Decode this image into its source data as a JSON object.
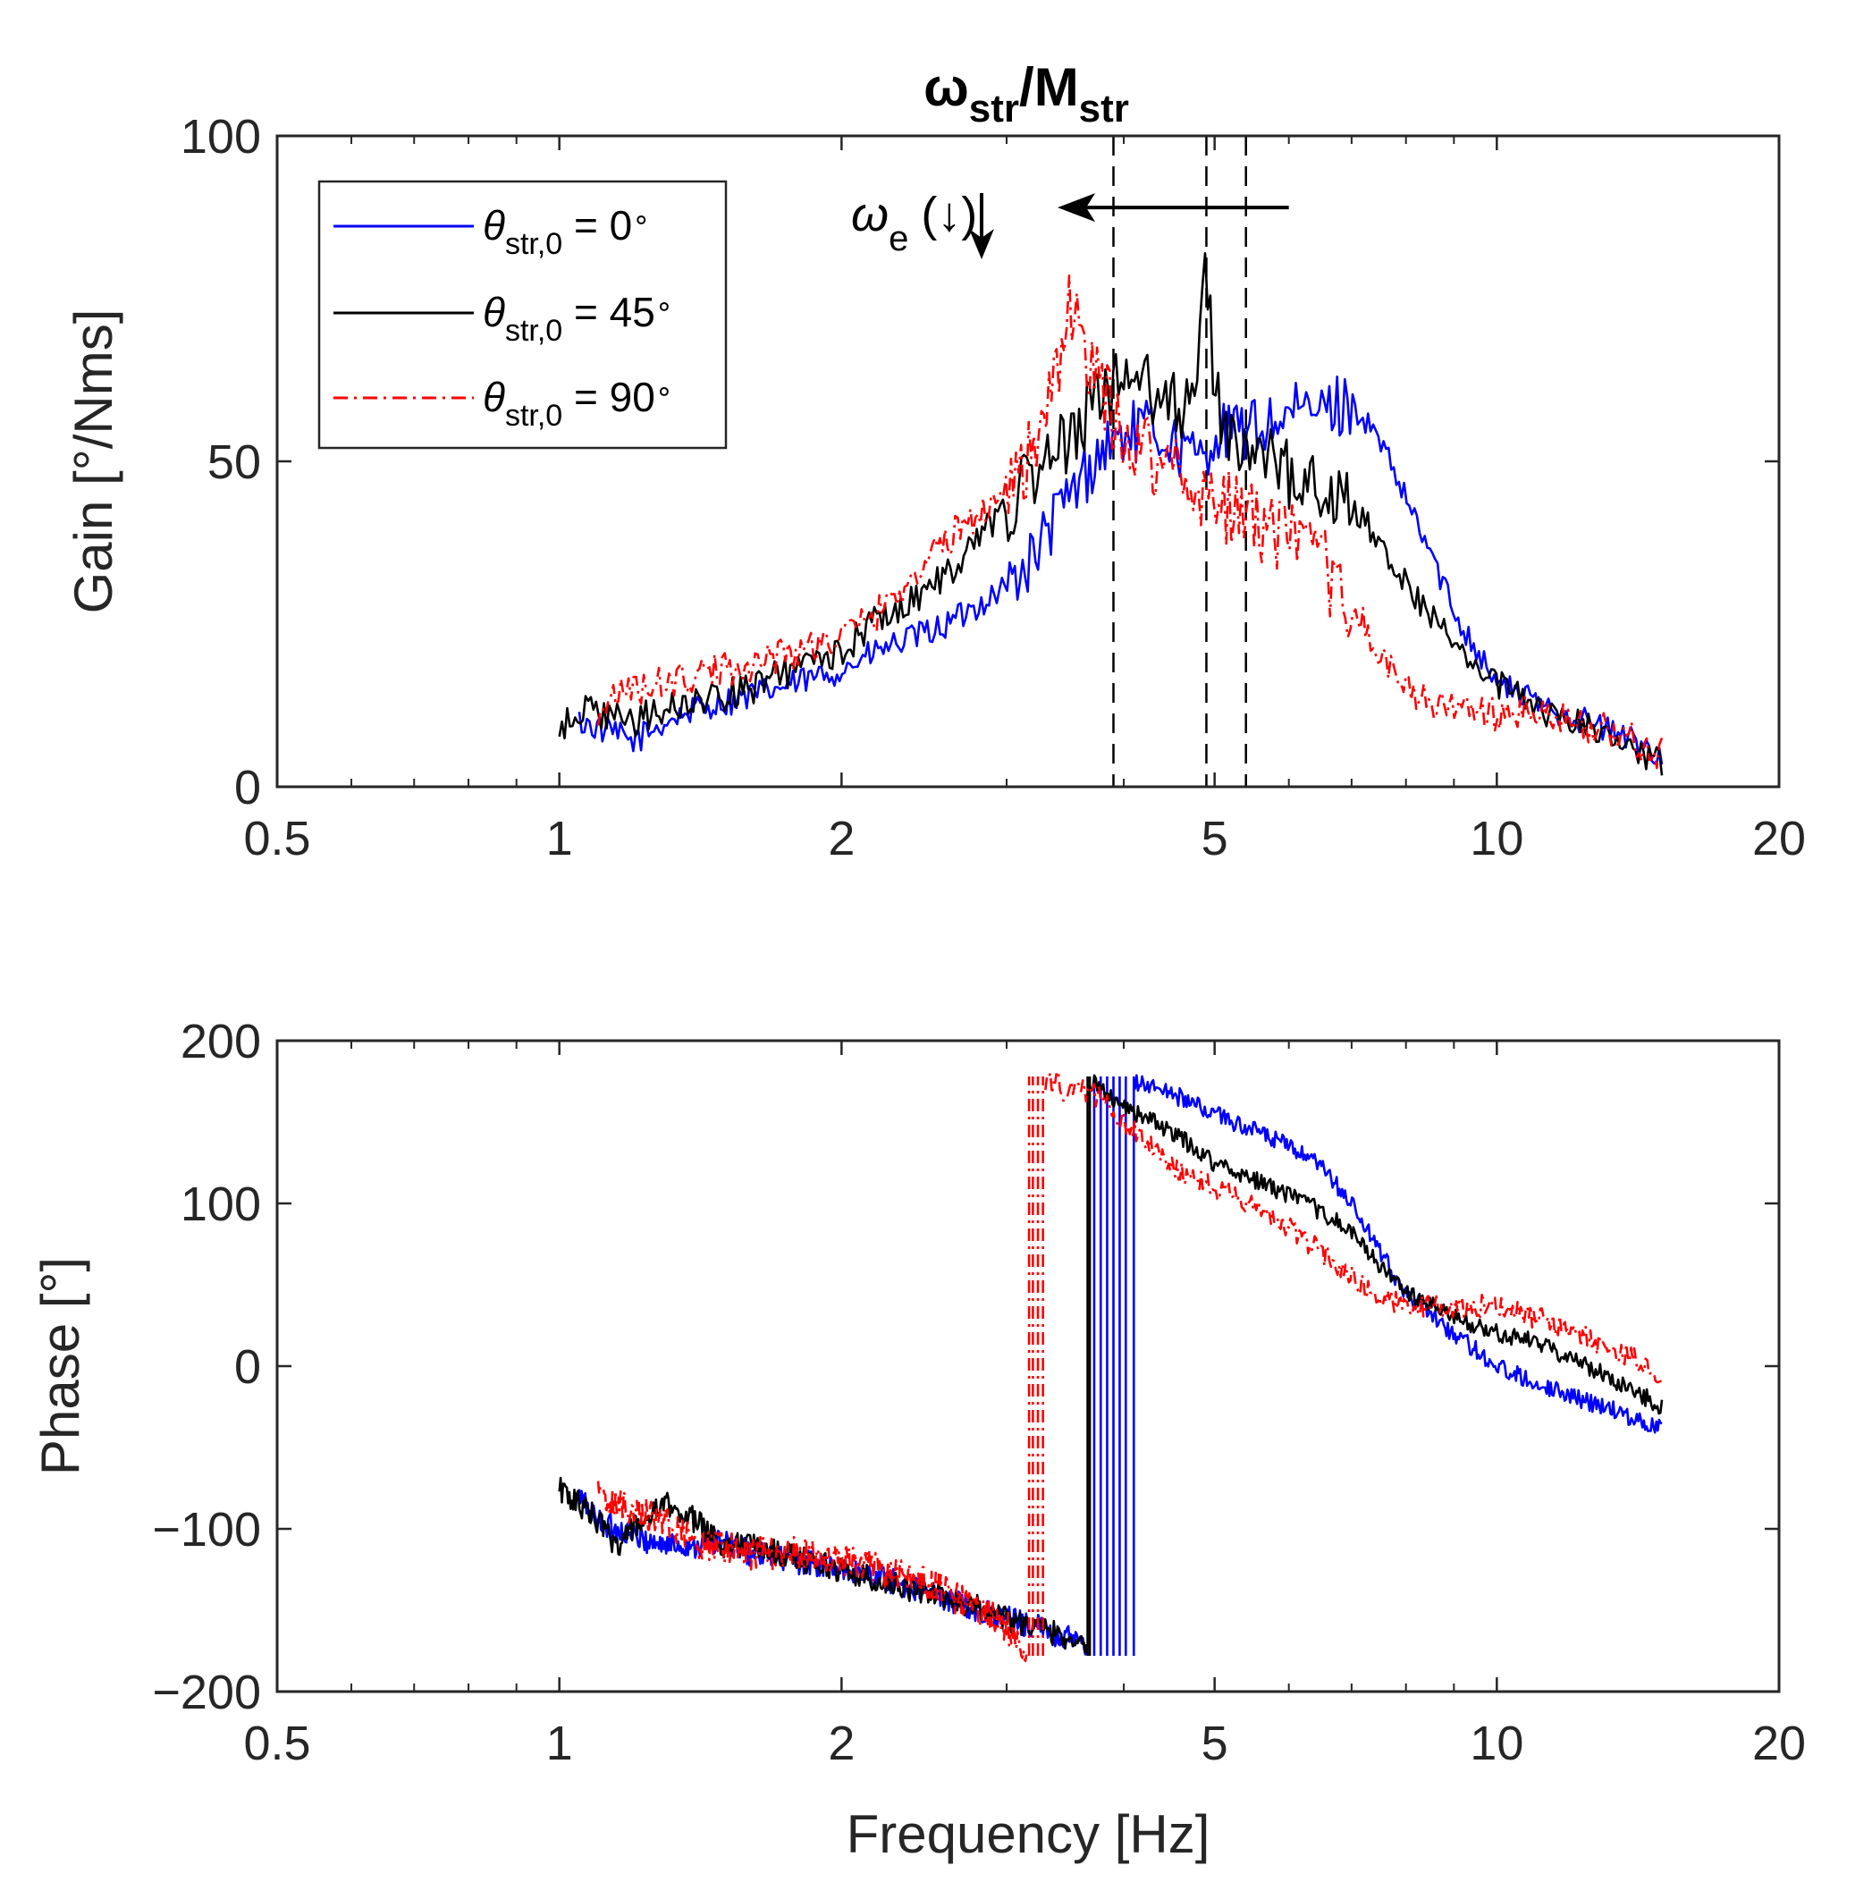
{
  "chart_data": [
    {
      "panel": "gain",
      "type": "line",
      "title": "ω_str/M_str",
      "title_parts": {
        "base1": "ω",
        "sub1": "str",
        "sep": "/",
        "base2": "M",
        "sub2": "str"
      },
      "xlabel": "",
      "ylabel": "Gain [°/Nms]",
      "xscale": "log",
      "xlim": [
        0.5,
        20
      ],
      "ylim": [
        0,
        100
      ],
      "xticks": [
        0.5,
        1,
        2,
        5,
        10,
        20
      ],
      "xtick_labels": [
        "0.5",
        "1",
        "2",
        "5",
        "10",
        "20"
      ],
      "yticks": [
        0,
        50,
        100
      ],
      "ytick_labels": [
        "0",
        "50",
        "100"
      ],
      "vlines": [
        3.9,
        4.9,
        5.4
      ],
      "annotation": {
        "symbol": "ω",
        "subscript": "e",
        "suffix": "(↓)",
        "arrow_from_x": 6.0,
        "arrow_to_x": 3.4,
        "arrow_y": 89
      },
      "legend": {
        "position": "top-left",
        "entries": [
          {
            "sym": "θ",
            "sub": "str,0",
            "text": " = 0",
            "deg": "∘",
            "color": "#0000ff",
            "style": "solid"
          },
          {
            "sym": "θ",
            "sub": "str,0",
            "text": " = 45",
            "deg": "∘",
            "color": "#000000",
            "style": "solid"
          },
          {
            "sym": "θ",
            "sub": "str,0",
            "text": " = 90",
            "deg": "∘",
            "color": "#ff0000",
            "style": "dashdot"
          }
        ]
      },
      "series": [
        {
          "name": "θ_str,0 = 0°",
          "color": "#0000ff",
          "style": "solid",
          "x": [
            1.05,
            1.1,
            1.2,
            1.3,
            1.4,
            1.5,
            1.6,
            1.7,
            1.8,
            1.9,
            2.0,
            2.2,
            2.4,
            2.6,
            2.8,
            3.0,
            3.2,
            3.4,
            3.6,
            3.8,
            4.0,
            4.2,
            4.4,
            4.6,
            4.8,
            5.0,
            5.5,
            6.0,
            6.5,
            7.0,
            7.5,
            8.0,
            8.5,
            9.0,
            10.0,
            11.0,
            12.0,
            13.0,
            14.0,
            15.0
          ],
          "y": [
            10,
            9,
            7,
            10,
            12,
            13,
            14,
            15,
            16,
            17,
            18,
            21,
            23,
            25,
            28,
            31,
            35,
            42,
            47,
            52,
            54,
            55,
            54,
            52,
            50,
            54,
            55,
            57,
            58,
            59,
            53,
            44,
            36,
            27,
            16,
            13,
            11,
            9,
            7,
            5
          ],
          "noise_amp": 2.2
        },
        {
          "name": "θ_str,0 = 45°",
          "color": "#000000",
          "style": "solid",
          "x": [
            1.0,
            1.05,
            1.1,
            1.2,
            1.3,
            1.4,
            1.5,
            1.6,
            1.7,
            1.8,
            2.0,
            2.2,
            2.4,
            2.6,
            2.8,
            3.0,
            3.2,
            3.4,
            3.6,
            3.8,
            4.0,
            4.2,
            4.4,
            4.6,
            4.8,
            4.9,
            5.0,
            5.3,
            5.7,
            6.0,
            6.5,
            7.0,
            7.5,
            8.0,
            9.0,
            10.0,
            11.0,
            12.0,
            13.0,
            14.0,
            15.0
          ],
          "y": [
            8,
            12,
            11,
            10,
            12,
            13,
            14,
            15,
            17,
            18,
            21,
            26,
            29,
            33,
            38,
            43,
            47,
            51,
            56,
            60,
            62,
            62,
            60,
            58,
            65,
            80,
            60,
            52,
            50,
            48,
            46,
            43,
            38,
            31,
            22,
            16,
            12,
            10,
            8,
            6,
            4
          ],
          "noise_amp": 2.5
        },
        {
          "name": "θ_str,0 = 90°",
          "color": "#ff0000",
          "style": "dashdot",
          "x": [
            1.1,
            1.15,
            1.2,
            1.3,
            1.4,
            1.5,
            1.6,
            1.7,
            1.8,
            1.9,
            2.0,
            2.2,
            2.4,
            2.6,
            2.8,
            3.0,
            3.2,
            3.4,
            3.5,
            3.6,
            3.8,
            4.0,
            4.2,
            4.4,
            4.6,
            4.8,
            5.0,
            5.5,
            6.0,
            6.5,
            7.0,
            7.5,
            8.0,
            8.5,
            9.0,
            10.0,
            11.0,
            12.0,
            13.0,
            14.0,
            15.0
          ],
          "y": [
            12,
            14,
            15,
            16,
            17,
            18,
            19,
            20,
            21,
            22,
            23,
            27,
            33,
            38,
            42,
            46,
            52,
            62,
            75,
            68,
            60,
            54,
            52,
            50,
            48,
            46,
            44,
            41,
            38,
            34,
            28,
            20,
            15,
            13,
            12,
            11,
            11,
            10,
            9,
            7,
            5
          ],
          "noise_amp": 2.8
        }
      ]
    },
    {
      "panel": "phase",
      "type": "line",
      "title": "",
      "xlabel": "Frequency [Hz]",
      "ylabel": "Phase [°]",
      "xscale": "log",
      "xlim": [
        0.5,
        20
      ],
      "ylim": [
        -200,
        200
      ],
      "xticks": [
        0.5,
        1,
        2,
        5,
        10,
        20
      ],
      "xtick_labels": [
        "0.5",
        "1",
        "2",
        "5",
        "10",
        "20"
      ],
      "yticks": [
        -200,
        -100,
        0,
        100,
        200
      ],
      "ytick_labels": [
        "−200",
        "−100",
        "0",
        "100",
        "200"
      ],
      "series": [
        {
          "name": "θ_str,0 = 0°",
          "color": "#0000ff",
          "style": "solid",
          "x": [
            1.05,
            1.1,
            1.2,
            1.3,
            1.4,
            1.5,
            1.6,
            1.8,
            2.0,
            2.2,
            2.5,
            2.8,
            3.0,
            3.3,
            3.6,
            3.65
          ],
          "y": [
            -80,
            -95,
            -105,
            -110,
            -110,
            -108,
            -115,
            -120,
            -125,
            -130,
            -140,
            -150,
            -155,
            -162,
            -170,
            -175
          ],
          "x2": [
            4.1,
            4.3,
            4.6,
            5.0,
            5.5,
            6.0,
            6.5,
            7.0,
            7.5,
            8.0,
            9.0,
            10.0,
            11.0,
            12.0,
            13.0,
            14.0,
            15.0
          ],
          "y2": [
            175,
            172,
            165,
            155,
            145,
            135,
            122,
            100,
            70,
            45,
            20,
            0,
            -10,
            -18,
            -25,
            -32,
            -38
          ],
          "wrap_x": [
            3.72,
            3.78,
            3.84,
            3.9,
            3.96,
            4.02,
            4.1
          ],
          "noise_amp": 4
        },
        {
          "name": "θ_str,0 = 45°",
          "color": "#000000",
          "style": "solid",
          "x": [
            1.0,
            1.05,
            1.1,
            1.15,
            1.2,
            1.3,
            1.4,
            1.5,
            1.6,
            1.8,
            2.0,
            2.2,
            2.5,
            2.8,
            3.0,
            3.3,
            3.6,
            3.65
          ],
          "y": [
            -75,
            -85,
            -95,
            -110,
            -100,
            -85,
            -95,
            -110,
            -110,
            -118,
            -125,
            -132,
            -140,
            -148,
            -155,
            -162,
            -170,
            -175
          ],
          "x2": [
            3.68,
            3.8,
            4.0,
            4.3,
            4.6,
            5.0,
            5.5,
            6.0,
            6.5,
            7.0,
            7.5,
            8.0,
            9.0,
            10.0,
            11.0,
            12.0,
            13.0,
            14.0,
            15.0
          ],
          "y2": [
            175,
            170,
            160,
            150,
            140,
            125,
            115,
            105,
            95,
            82,
            62,
            45,
            30,
            20,
            15,
            5,
            -5,
            -15,
            -25
          ],
          "wrap_x": [
            3.66,
            3.68
          ],
          "noise_amp": 4
        },
        {
          "name": "θ_str,0 = 90°",
          "color": "#ff0000",
          "style": "dashdot",
          "x": [
            1.1,
            1.15,
            1.2,
            1.3,
            1.4,
            1.5,
            1.6,
            1.8,
            2.0,
            2.2,
            2.5,
            2.8,
            3.0,
            3.1,
            3.15
          ],
          "y": [
            -80,
            -85,
            -88,
            -95,
            -110,
            -112,
            -115,
            -115,
            -118,
            -125,
            -135,
            -150,
            -160,
            -170,
            -175
          ],
          "x2": [
            3.3,
            3.5,
            3.8,
            4.0,
            4.3,
            4.6,
            5.0,
            5.5,
            6.0,
            6.5,
            7.0,
            7.5,
            8.0,
            9.0,
            10.0,
            11.0,
            12.0,
            13.0,
            14.0,
            15.0
          ],
          "y2": [
            175,
            172,
            165,
            150,
            135,
            120,
            110,
            98,
            85,
            70,
            55,
            42,
            38,
            35,
            38,
            30,
            22,
            12,
            5,
            -12
          ],
          "wrap_x": [
            3.17,
            3.2,
            3.24,
            3.28
          ],
          "noise_amp": 5
        }
      ]
    }
  ]
}
